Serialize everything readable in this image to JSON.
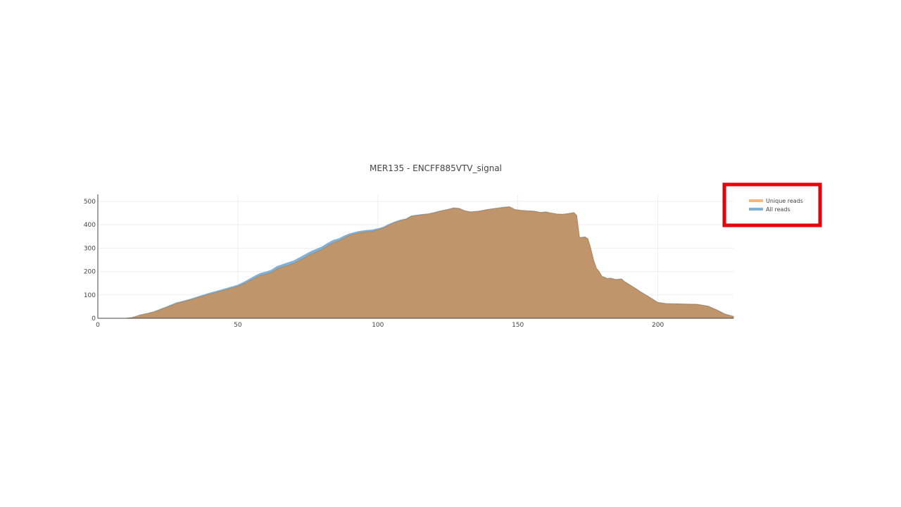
{
  "chart_data": {
    "type": "area",
    "title": "MER135 - ENCFF885VTV_signal",
    "xlabel": "",
    "ylabel": "",
    "xlim": [
      0,
      227
    ],
    "ylim": [
      0,
      530
    ],
    "x_ticks": [
      0,
      50,
      100,
      150,
      200
    ],
    "y_ticks": [
      0,
      100,
      200,
      300,
      400,
      500
    ],
    "grid": true,
    "legend_position": "top-right",
    "highlight": {
      "target": "legend",
      "color": "#e8000b"
    },
    "series": [
      {
        "name": "All reads",
        "color": "#7fb2d9",
        "points": [
          [
            0,
            0
          ],
          [
            10,
            0
          ],
          [
            12,
            2
          ],
          [
            15,
            14
          ],
          [
            18,
            22
          ],
          [
            20,
            28
          ],
          [
            23,
            42
          ],
          [
            26,
            56
          ],
          [
            28,
            66
          ],
          [
            30,
            72
          ],
          [
            33,
            82
          ],
          [
            36,
            93
          ],
          [
            40,
            108
          ],
          [
            43,
            118
          ],
          [
            46,
            128
          ],
          [
            50,
            142
          ],
          [
            53,
            160
          ],
          [
            56,
            180
          ],
          [
            58,
            192
          ],
          [
            60,
            198
          ],
          [
            62,
            206
          ],
          [
            64,
            222
          ],
          [
            66,
            230
          ],
          [
            70,
            246
          ],
          [
            73,
            265
          ],
          [
            76,
            285
          ],
          [
            78,
            295
          ],
          [
            80,
            305
          ],
          [
            82,
            320
          ],
          [
            84,
            333
          ],
          [
            86,
            340
          ],
          [
            88,
            352
          ],
          [
            90,
            362
          ],
          [
            93,
            371
          ],
          [
            96,
            376
          ],
          [
            98,
            378
          ],
          [
            100,
            383
          ],
          [
            102,
            390
          ],
          [
            104,
            402
          ],
          [
            106,
            412
          ],
          [
            108,
            420
          ],
          [
            110,
            425
          ],
          [
            112,
            438
          ],
          [
            115,
            443
          ],
          [
            118,
            447
          ],
          [
            120,
            452
          ],
          [
            122,
            458
          ],
          [
            125,
            466
          ],
          [
            127,
            472
          ],
          [
            129,
            470
          ],
          [
            131,
            460
          ],
          [
            133,
            455
          ],
          [
            136,
            458
          ],
          [
            139,
            465
          ],
          [
            142,
            470
          ],
          [
            145,
            475
          ],
          [
            147,
            477
          ],
          [
            149,
            465
          ],
          [
            151,
            462
          ],
          [
            153,
            460
          ],
          [
            156,
            458
          ],
          [
            158,
            453
          ],
          [
            160,
            455
          ],
          [
            162,
            450
          ],
          [
            164,
            446
          ],
          [
            166,
            445
          ],
          [
            168,
            448
          ],
          [
            170,
            452
          ],
          [
            171,
            440
          ],
          [
            172,
            345
          ],
          [
            174,
            348
          ],
          [
            175,
            340
          ],
          [
            176,
            300
          ],
          [
            177,
            250
          ],
          [
            178,
            215
          ],
          [
            179,
            200
          ],
          [
            180,
            180
          ],
          [
            182,
            170
          ],
          [
            183,
            172
          ],
          [
            185,
            166
          ],
          [
            187,
            168
          ],
          [
            188,
            158
          ],
          [
            190,
            143
          ],
          [
            192,
            128
          ],
          [
            194,
            112
          ],
          [
            196,
            98
          ],
          [
            198,
            83
          ],
          [
            200,
            68
          ],
          [
            203,
            63
          ],
          [
            206,
            62
          ],
          [
            210,
            61
          ],
          [
            214,
            60
          ],
          [
            218,
            52
          ],
          [
            221,
            36
          ],
          [
            224,
            18
          ],
          [
            227,
            8
          ]
        ]
      },
      {
        "name": "Unique reads",
        "color": "#f5b97f",
        "points": [
          [
            0,
            0
          ],
          [
            10,
            0
          ],
          [
            12,
            2
          ],
          [
            15,
            13
          ],
          [
            18,
            21
          ],
          [
            20,
            27
          ],
          [
            23,
            40
          ],
          [
            26,
            53
          ],
          [
            28,
            63
          ],
          [
            30,
            69
          ],
          [
            33,
            79
          ],
          [
            36,
            89
          ],
          [
            40,
            103
          ],
          [
            43,
            113
          ],
          [
            46,
            123
          ],
          [
            50,
            136
          ],
          [
            53,
            152
          ],
          [
            56,
            171
          ],
          [
            58,
            182
          ],
          [
            60,
            188
          ],
          [
            62,
            196
          ],
          [
            64,
            211
          ],
          [
            66,
            219
          ],
          [
            70,
            235
          ],
          [
            73,
            253
          ],
          [
            76,
            273
          ],
          [
            78,
            283
          ],
          [
            80,
            294
          ],
          [
            82,
            309
          ],
          [
            84,
            322
          ],
          [
            86,
            330
          ],
          [
            88,
            343
          ],
          [
            90,
            354
          ],
          [
            93,
            364
          ],
          [
            96,
            370
          ],
          [
            98,
            372
          ],
          [
            100,
            378
          ],
          [
            102,
            386
          ],
          [
            104,
            398
          ],
          [
            106,
            409
          ],
          [
            108,
            417
          ],
          [
            110,
            423
          ],
          [
            112,
            436
          ],
          [
            115,
            441
          ],
          [
            118,
            445
          ],
          [
            120,
            450
          ],
          [
            122,
            457
          ],
          [
            125,
            465
          ],
          [
            127,
            471
          ],
          [
            129,
            469
          ],
          [
            131,
            459
          ],
          [
            133,
            454
          ],
          [
            136,
            457
          ],
          [
            139,
            464
          ],
          [
            142,
            469
          ],
          [
            145,
            474
          ],
          [
            147,
            476
          ],
          [
            149,
            464
          ],
          [
            151,
            461
          ],
          [
            153,
            459
          ],
          [
            156,
            457
          ],
          [
            158,
            452
          ],
          [
            160,
            454
          ],
          [
            162,
            449
          ],
          [
            164,
            445
          ],
          [
            166,
            444
          ],
          [
            168,
            447
          ],
          [
            170,
            451
          ],
          [
            171,
            439
          ],
          [
            172,
            344
          ],
          [
            174,
            347
          ],
          [
            175,
            339
          ],
          [
            176,
            299
          ],
          [
            177,
            249
          ],
          [
            178,
            214
          ],
          [
            179,
            199
          ],
          [
            180,
            179
          ],
          [
            182,
            169
          ],
          [
            183,
            171
          ],
          [
            185,
            165
          ],
          [
            187,
            167
          ],
          [
            188,
            157
          ],
          [
            190,
            142
          ],
          [
            192,
            127
          ],
          [
            194,
            111
          ],
          [
            196,
            97
          ],
          [
            198,
            82
          ],
          [
            200,
            67
          ],
          [
            203,
            62
          ],
          [
            206,
            61
          ],
          [
            210,
            60
          ],
          [
            214,
            59
          ],
          [
            218,
            51
          ],
          [
            221,
            35
          ],
          [
            224,
            17
          ],
          [
            227,
            7
          ]
        ]
      }
    ],
    "legend_order": [
      "Unique reads",
      "All reads"
    ]
  }
}
